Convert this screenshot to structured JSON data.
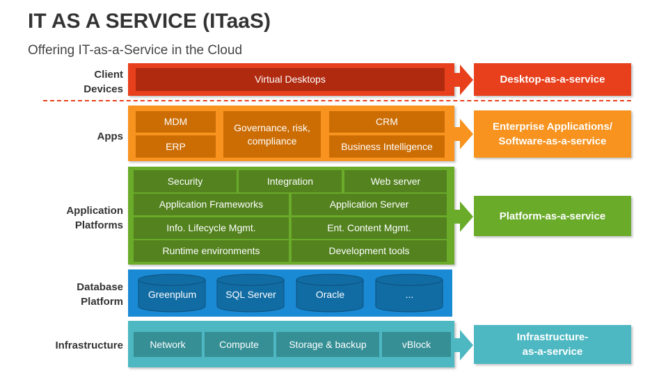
{
  "title": "IT AS A SERVICE (ITaaS)",
  "subtitle": "Offering IT-as-a-Service in the Cloud",
  "colors": {
    "client": "#E8401C",
    "apps": "#F7931E",
    "platforms": "#6AAB2A",
    "database": "#1A8AD4",
    "infrastructure": "#4DB8C2"
  },
  "layers": {
    "client": {
      "label": "Client\nDevices",
      "label_l1": "Client",
      "label_l2": "Devices",
      "items": [
        "Virtual Desktops"
      ],
      "service": "Desktop-as-a-service"
    },
    "apps": {
      "label": "Apps",
      "items": [
        "MDM",
        "ERP",
        "Governance, risk, compliance",
        "CRM",
        "Business Intelligence"
      ],
      "service_l1": "Enterprise Applications/",
      "service_l2": "Software-as-a-service"
    },
    "platforms": {
      "label_l1": "Application",
      "label_l2": "Platforms",
      "items": [
        "Security",
        "Integration",
        "Web server",
        "Application Frameworks",
        "Application Server",
        "Info. Lifecycle Mgmt.",
        "Ent. Content Mgmt.",
        "Runtime environments",
        "Development tools"
      ],
      "service": "Platform-as-a-service"
    },
    "database": {
      "label_l1": "Database",
      "label_l2": "Platform",
      "items": [
        "Greenplum",
        "SQL Server",
        "Oracle",
        "..."
      ]
    },
    "infrastructure": {
      "label": "Infrastructure",
      "items": [
        "Network",
        "Compute",
        "Storage & backup",
        "vBlock"
      ],
      "service_l1": "Infrastructure-",
      "service_l2": "as-a-service"
    }
  }
}
